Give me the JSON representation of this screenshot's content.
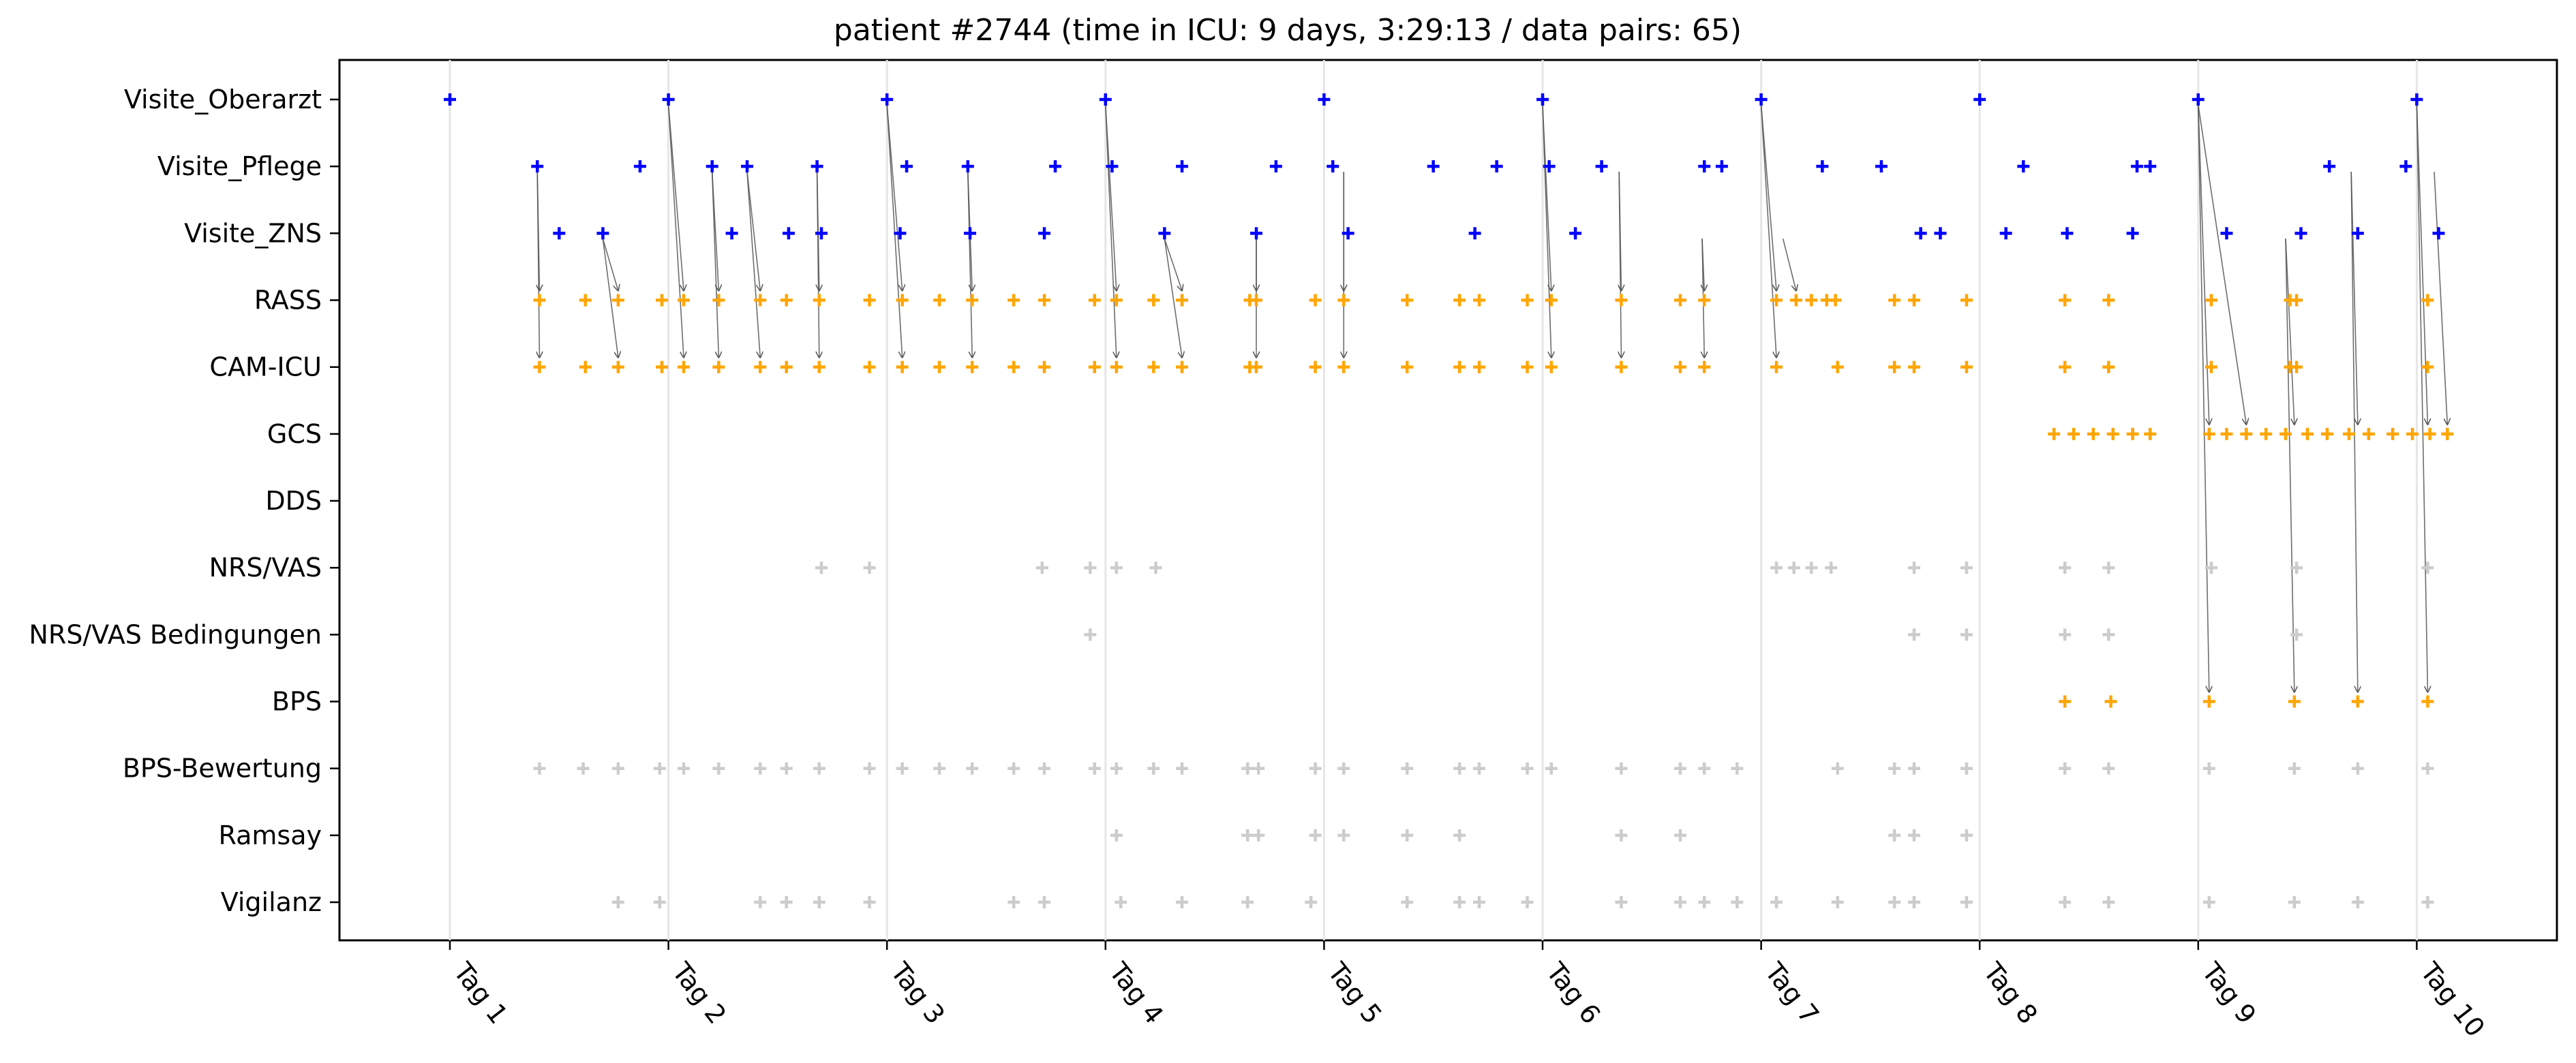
{
  "chart_data": {
    "type": "scatter",
    "title": "patient #2744 (time in ICU: 9 days, 3:29:13 / data pairs: 65)",
    "xlabel": "",
    "ylabel": "",
    "x_unit": "days since admission (Tag 1 = 0)",
    "xlim": [
      -0.5,
      9.65
    ],
    "x_tick_values": [
      0,
      1,
      2,
      3,
      4,
      5,
      6,
      7,
      8,
      9
    ],
    "x_tick_labels": [
      "Tag 1",
      "Tag 2",
      "Tag 3",
      "Tag 4",
      "Tag 5",
      "Tag 6",
      "Tag 7",
      "Tag 8",
      "Tag 9",
      "Tag 10"
    ],
    "categories": [
      "Visite_Oberarzt",
      "Visite_Pflege",
      "Visite_ZNS",
      "RASS",
      "CAM-ICU",
      "GCS",
      "DDS",
      "NRS/VAS",
      "NRS/VAS Bedingungen",
      "BPS",
      "BPS-Bewertung",
      "Ramsay",
      "Vigilanz"
    ],
    "grid": "vertical lines at day ticks",
    "colors": {
      "visit": "#0000ff",
      "assessment": "#ffa500",
      "other": "#cccccc",
      "arrow": "#555555"
    },
    "series": [
      {
        "category": "Visite_Oberarzt",
        "color": "#0000ff",
        "x": [
          0,
          1,
          2,
          3,
          4,
          5,
          6,
          7,
          8,
          9
        ]
      },
      {
        "category": "Visite_Pflege",
        "color": "#0000ff",
        "x": [
          0.4,
          0.87,
          1.2,
          1.36,
          1.68,
          2.09,
          2.37,
          2.77,
          3.03,
          3.35,
          3.78,
          4.04,
          4.5,
          4.79,
          5.03,
          5.27,
          5.74,
          5.82,
          6.28,
          6.55,
          7.2,
          7.72,
          7.78,
          8.6,
          8.95
        ]
      },
      {
        "category": "Visite_ZNS",
        "color": "#0000ff",
        "x": [
          0.5,
          0.7,
          1.29,
          1.55,
          1.7,
          2.06,
          2.38,
          2.72,
          3.27,
          3.69,
          4.11,
          4.69,
          5.15,
          6.73,
          6.82,
          7.12,
          7.4,
          7.7,
          8.13,
          8.47,
          8.73,
          9.1
        ]
      },
      {
        "category": "RASS",
        "color": "#ffa500",
        "x": [
          0.41,
          0.62,
          0.77,
          0.97,
          1.07,
          1.23,
          1.42,
          1.54,
          1.69,
          1.92,
          2.07,
          2.24,
          2.39,
          2.58,
          2.72,
          2.95,
          3.05,
          3.22,
          3.35,
          3.66,
          3.69,
          3.96,
          4.09,
          4.38,
          4.62,
          4.71,
          4.93,
          5.04,
          5.36,
          5.63,
          5.74,
          6.07,
          6.16,
          6.23,
          6.3,
          6.34,
          6.61,
          6.7,
          6.94,
          7.39,
          7.59,
          8.06,
          8.42,
          8.45,
          9.05
        ]
      },
      {
        "category": "CAM-ICU",
        "color": "#ffa500",
        "x": [
          0.41,
          0.62,
          0.77,
          0.97,
          1.07,
          1.23,
          1.42,
          1.54,
          1.69,
          1.92,
          2.07,
          2.24,
          2.39,
          2.58,
          2.72,
          2.95,
          3.05,
          3.22,
          3.35,
          3.66,
          3.69,
          3.96,
          4.09,
          4.38,
          4.62,
          4.71,
          4.93,
          5.04,
          5.36,
          5.63,
          5.74,
          6.07,
          6.35,
          6.61,
          6.7,
          6.94,
          7.39,
          7.59,
          8.06,
          8.42,
          8.45,
          9.05
        ]
      },
      {
        "category": "GCS",
        "color": "#ffa500",
        "x": [
          7.34,
          7.43,
          7.52,
          7.61,
          7.7,
          7.78,
          8.05,
          8.13,
          8.22,
          8.31,
          8.4,
          8.5,
          8.59,
          8.69,
          8.78,
          8.89,
          8.98,
          9.06,
          9.14
        ]
      },
      {
        "category": "DDS",
        "color": "#ffa500",
        "x": []
      },
      {
        "category": "NRS/VAS",
        "color": "#cccccc",
        "x": [
          1.7,
          1.92,
          2.71,
          2.93,
          3.05,
          3.23,
          6.07,
          6.15,
          6.23,
          6.32,
          6.7,
          6.94,
          7.39,
          7.59,
          8.06,
          8.45,
          9.05
        ]
      },
      {
        "category": "NRS/VAS Bedingungen",
        "color": "#cccccc",
        "x": [
          2.93,
          6.7,
          6.94,
          7.39,
          7.59,
          8.45
        ]
      },
      {
        "category": "BPS",
        "color": "#ffa500",
        "x": [
          7.39,
          7.6,
          8.05,
          8.44,
          8.73,
          9.05
        ]
      },
      {
        "category": "BPS-Bewertung",
        "color": "#cccccc",
        "x": [
          0.41,
          0.61,
          0.77,
          0.96,
          1.07,
          1.23,
          1.42,
          1.54,
          1.69,
          1.92,
          2.07,
          2.24,
          2.39,
          2.58,
          2.72,
          2.95,
          3.05,
          3.22,
          3.35,
          3.65,
          3.7,
          3.96,
          4.09,
          4.38,
          4.62,
          4.71,
          4.93,
          5.04,
          5.36,
          5.63,
          5.74,
          5.89,
          6.35,
          6.61,
          6.7,
          6.94,
          7.39,
          7.59,
          8.05,
          8.44,
          8.73,
          9.05
        ]
      },
      {
        "category": "Ramsay",
        "color": "#cccccc",
        "x": [
          3.05,
          3.65,
          3.7,
          3.96,
          4.09,
          4.38,
          4.62,
          5.36,
          5.63,
          6.61,
          6.7,
          6.94
        ]
      },
      {
        "category": "Vigilanz",
        "color": "#cccccc",
        "x": [
          0.77,
          0.96,
          1.42,
          1.54,
          1.69,
          1.92,
          2.58,
          2.72,
          3.07,
          3.35,
          3.65,
          3.94,
          4.38,
          4.62,
          4.71,
          4.93,
          5.36,
          5.63,
          5.74,
          5.89,
          6.07,
          6.35,
          6.61,
          6.7,
          6.94,
          7.39,
          7.59,
          8.05,
          8.44,
          8.73,
          9.05
        ]
      }
    ],
    "arrows": [
      {
        "from": [
          0.4,
          "Visite_Pflege"
        ],
        "to": [
          0.41,
          "RASS"
        ]
      },
      {
        "from": [
          0.4,
          "Visite_Pflege"
        ],
        "to": [
          0.41,
          "CAM-ICU"
        ]
      },
      {
        "from": [
          0.7,
          "Visite_ZNS"
        ],
        "to": [
          0.77,
          "RASS"
        ]
      },
      {
        "from": [
          0.7,
          "Visite_ZNS"
        ],
        "to": [
          0.77,
          "CAM-ICU"
        ]
      },
      {
        "from": [
          1,
          "Visite_Oberarzt"
        ],
        "to": [
          1.07,
          "RASS"
        ]
      },
      {
        "from": [
          1,
          "Visite_Oberarzt"
        ],
        "to": [
          1.07,
          "CAM-ICU"
        ]
      },
      {
        "from": [
          1.2,
          "Visite_Pflege"
        ],
        "to": [
          1.23,
          "RASS"
        ]
      },
      {
        "from": [
          1.2,
          "Visite_Pflege"
        ],
        "to": [
          1.23,
          "CAM-ICU"
        ]
      },
      {
        "from": [
          1.36,
          "Visite_Pflege"
        ],
        "to": [
          1.42,
          "RASS"
        ]
      },
      {
        "from": [
          1.36,
          "Visite_Pflege"
        ],
        "to": [
          1.42,
          "CAM-ICU"
        ]
      },
      {
        "from": [
          1.68,
          "Visite_Pflege"
        ],
        "to": [
          1.69,
          "RASS"
        ]
      },
      {
        "from": [
          1.68,
          "Visite_Pflege"
        ],
        "to": [
          1.69,
          "CAM-ICU"
        ]
      },
      {
        "from": [
          2,
          "Visite_Oberarzt"
        ],
        "to": [
          2.07,
          "RASS"
        ]
      },
      {
        "from": [
          2,
          "Visite_Oberarzt"
        ],
        "to": [
          2.07,
          "CAM-ICU"
        ]
      },
      {
        "from": [
          2.37,
          "Visite_Pflege"
        ],
        "to": [
          2.39,
          "RASS"
        ]
      },
      {
        "from": [
          2.37,
          "Visite_Pflege"
        ],
        "to": [
          2.39,
          "CAM-ICU"
        ]
      },
      {
        "from": [
          3,
          "Visite_Oberarzt"
        ],
        "to": [
          3.05,
          "RASS"
        ]
      },
      {
        "from": [
          3,
          "Visite_Oberarzt"
        ],
        "to": [
          3.05,
          "CAM-ICU"
        ]
      },
      {
        "from": [
          3.27,
          "Visite_ZNS"
        ],
        "to": [
          3.35,
          "RASS"
        ]
      },
      {
        "from": [
          3.27,
          "Visite_ZNS"
        ],
        "to": [
          3.35,
          "CAM-ICU"
        ]
      },
      {
        "from": [
          3.69,
          "Visite_ZNS"
        ],
        "to": [
          3.69,
          "RASS"
        ]
      },
      {
        "from": [
          3.69,
          "Visite_ZNS"
        ],
        "to": [
          3.69,
          "CAM-ICU"
        ]
      },
      {
        "from": [
          4.09,
          "Visite_Pflege"
        ],
        "to": [
          4.09,
          "RASS"
        ]
      },
      {
        "from": [
          4.09,
          "Visite_Pflege"
        ],
        "to": [
          4.09,
          "CAM-ICU"
        ]
      },
      {
        "from": [
          5,
          "Visite_Oberarzt"
        ],
        "to": [
          5.04,
          "RASS"
        ]
      },
      {
        "from": [
          5,
          "Visite_Oberarzt"
        ],
        "to": [
          5.04,
          "CAM-ICU"
        ]
      },
      {
        "from": [
          5.35,
          "Visite_Pflege"
        ],
        "to": [
          5.36,
          "RASS"
        ]
      },
      {
        "from": [
          5.35,
          "Visite_Pflege"
        ],
        "to": [
          5.36,
          "CAM-ICU"
        ]
      },
      {
        "from": [
          5.73,
          "Visite_ZNS"
        ],
        "to": [
          5.74,
          "RASS"
        ]
      },
      {
        "from": [
          5.73,
          "Visite_ZNS"
        ],
        "to": [
          5.74,
          "CAM-ICU"
        ]
      },
      {
        "from": [
          6,
          "Visite_Oberarzt"
        ],
        "to": [
          6.07,
          "RASS"
        ]
      },
      {
        "from": [
          6,
          "Visite_Oberarzt"
        ],
        "to": [
          6.07,
          "CAM-ICU"
        ]
      },
      {
        "from": [
          6.1,
          "Visite_ZNS"
        ],
        "to": [
          6.16,
          "RASS"
        ]
      },
      {
        "from": [
          8,
          "Visite_Oberarzt"
        ],
        "to": [
          8.05,
          "GCS"
        ]
      },
      {
        "from": [
          8,
          "Visite_Oberarzt"
        ],
        "to": [
          8.05,
          "BPS"
        ]
      },
      {
        "from": [
          8,
          "Visite_Oberarzt"
        ],
        "to": [
          8.22,
          "GCS"
        ]
      },
      {
        "from": [
          8.4,
          "Visite_ZNS"
        ],
        "to": [
          8.44,
          "GCS"
        ]
      },
      {
        "from": [
          8.4,
          "Visite_ZNS"
        ],
        "to": [
          8.44,
          "BPS"
        ]
      },
      {
        "from": [
          8.7,
          "Visite_Pflege"
        ],
        "to": [
          8.73,
          "GCS"
        ]
      },
      {
        "from": [
          8.7,
          "Visite_Pflege"
        ],
        "to": [
          8.73,
          "BPS"
        ]
      },
      {
        "from": [
          9,
          "Visite_Oberarzt"
        ],
        "to": [
          9.05,
          "GCS"
        ]
      },
      {
        "from": [
          9,
          "Visite_Oberarzt"
        ],
        "to": [
          9.05,
          "BPS"
        ]
      },
      {
        "from": [
          9.08,
          "Visite_Pflege"
        ],
        "to": [
          9.14,
          "GCS"
        ]
      }
    ]
  }
}
